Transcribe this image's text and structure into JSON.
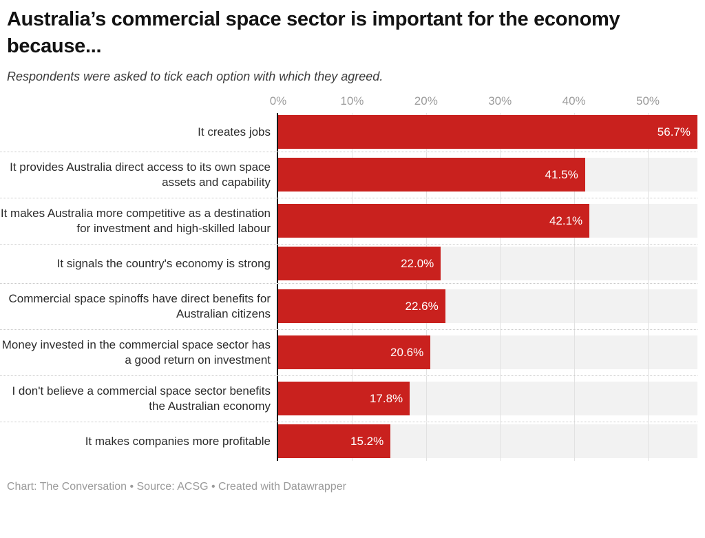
{
  "header": {
    "title": "Australia’s commercial space sector is important for the economy because...",
    "subtitle": "Respondents were asked to tick each option with which they agreed."
  },
  "footer": {
    "text": "Chart: The Conversation • Source: ACSG • Created with Datawrapper"
  },
  "chart_data": {
    "type": "bar",
    "orientation": "horizontal",
    "title": "Australia’s commercial space sector is important for the economy because...",
    "subtitle": "Respondents were asked to tick each option with which they agreed.",
    "categories": [
      "It creates jobs",
      "It provides Australia direct access to its own space assets and capability",
      "It makes Australia more competitive as a destination for investment and high-skilled labour",
      "It signals the country's economy is strong",
      "Commercial space spinoffs have direct benefits for Australian citizens",
      "Money invested in the commercial space sector has a good return on investment",
      "I don't believe a commercial space sector benefits the Australian economy",
      "It makes companies more profitable"
    ],
    "values": [
      56.7,
      41.5,
      42.1,
      22.0,
      22.6,
      20.6,
      17.8,
      15.2
    ],
    "value_labels": [
      "56.7%",
      "41.5%",
      "42.1%",
      "22.0%",
      "22.6%",
      "20.6%",
      "17.8%",
      "15.2%"
    ],
    "x_ticks": [
      {
        "label": "0%",
        "value": 0
      },
      {
        "label": "10%",
        "value": 10
      },
      {
        "label": "20%",
        "value": 20
      },
      {
        "label": "30%",
        "value": 30
      },
      {
        "label": "40%",
        "value": 40
      },
      {
        "label": "50%",
        "value": 50
      }
    ],
    "grid_values": [
      10,
      20,
      30,
      40,
      50
    ],
    "xlim": [
      0,
      56.7
    ],
    "xlabel": "",
    "ylabel": "",
    "grid": true,
    "legend": false,
    "bar_color": "#c9211e",
    "track_color": "#f2f2f2",
    "gridline_color": "#e2e2e2",
    "axis_line_color": "#1a1a1a",
    "value_label_color": "#ffffff",
    "tick_label_color": "#9c9c9c"
  }
}
